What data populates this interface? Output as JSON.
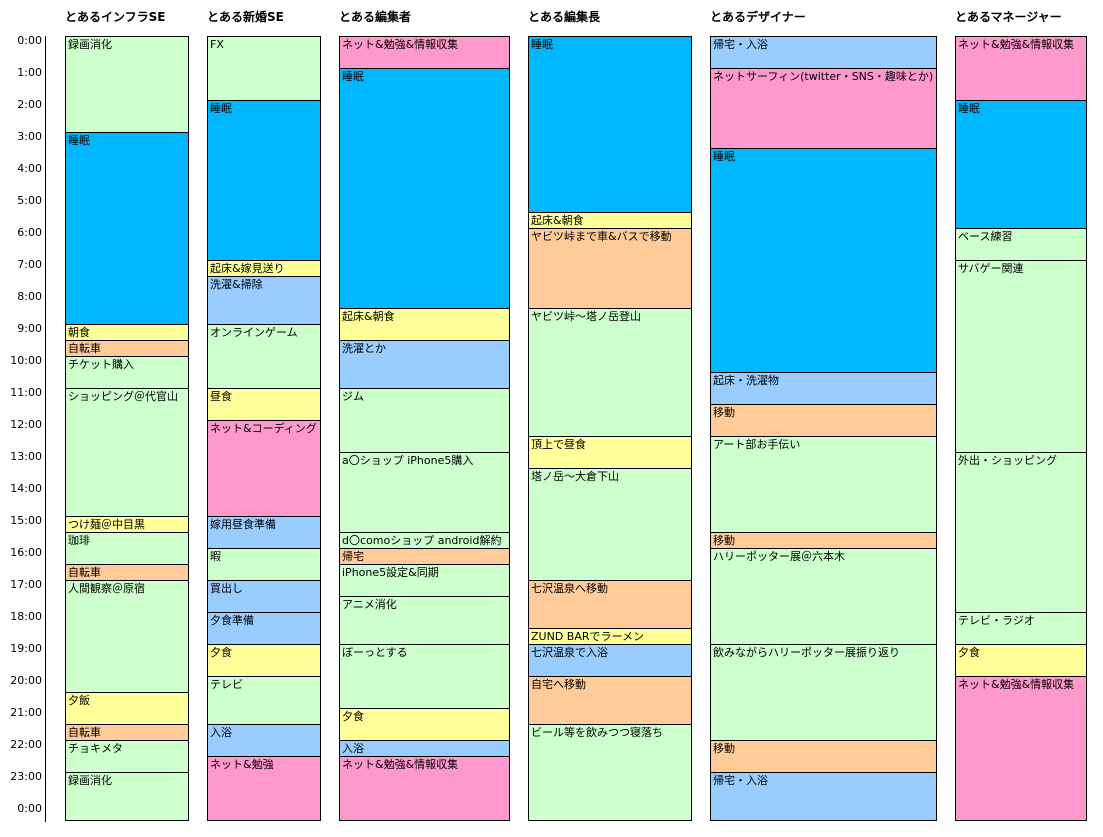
{
  "hours": [
    "0:00",
    "1:00",
    "2:00",
    "3:00",
    "4:00",
    "5:00",
    "6:00",
    "7:00",
    "8:00",
    "9:00",
    "10:00",
    "11:00",
    "12:00",
    "13:00",
    "14:00",
    "15:00",
    "16:00",
    "17:00",
    "18:00",
    "19:00",
    "20:00",
    "21:00",
    "22:00",
    "23:00",
    "0:00"
  ],
  "palette": {
    "green": "#ccffcc",
    "blue": "#00b8ff",
    "yellow": "#ffff99",
    "orange": "#ffcc99",
    "lightblue": "#99ccff",
    "pink": "#ff99cc"
  },
  "columns": [
    {
      "title": "とあるインフラSE",
      "blocks": [
        {
          "label": "録画消化",
          "start": 0,
          "end": 3,
          "color": "green"
        },
        {
          "label": "睡眠",
          "start": 3,
          "end": 9,
          "color": "blue"
        },
        {
          "label": "朝食",
          "start": 9,
          "end": 9.5,
          "color": "yellow"
        },
        {
          "label": "自転車",
          "start": 9.5,
          "end": 10,
          "color": "orange"
        },
        {
          "label": "チケット購入",
          "start": 10,
          "end": 11,
          "color": "green"
        },
        {
          "label": "ショッピング＠代官山",
          "start": 11,
          "end": 15,
          "color": "green"
        },
        {
          "label": "つけ麺＠中目黒",
          "start": 15,
          "end": 15.5,
          "color": "yellow"
        },
        {
          "label": "珈琲",
          "start": 15.5,
          "end": 16.5,
          "color": "green"
        },
        {
          "label": "自転車",
          "start": 16.5,
          "end": 17,
          "color": "orange"
        },
        {
          "label": "人間観察＠原宿",
          "start": 17,
          "end": 20.5,
          "color": "green"
        },
        {
          "label": "夕飯",
          "start": 20.5,
          "end": 21.5,
          "color": "yellow"
        },
        {
          "label": "自転車",
          "start": 21.5,
          "end": 22,
          "color": "orange"
        },
        {
          "label": "チョキメタ",
          "start": 22,
          "end": 23,
          "color": "green"
        },
        {
          "label": "録画消化",
          "start": 23,
          "end": 24.5,
          "color": "green"
        }
      ]
    },
    {
      "title": "とある新婚SE",
      "blocks": [
        {
          "label": "FX",
          "start": 0,
          "end": 2,
          "color": "green"
        },
        {
          "label": "睡眠",
          "start": 2,
          "end": 7,
          "color": "blue"
        },
        {
          "label": "起床&嫁見送り",
          "start": 7,
          "end": 7.5,
          "color": "yellow"
        },
        {
          "label": "洗濯&掃除",
          "start": 7.5,
          "end": 9,
          "color": "lightblue"
        },
        {
          "label": "オンラインゲーム",
          "start": 9,
          "end": 11,
          "color": "green"
        },
        {
          "label": "昼食",
          "start": 11,
          "end": 12,
          "color": "yellow"
        },
        {
          "label": "ネット&コーディング",
          "start": 12,
          "end": 15,
          "color": "pink"
        },
        {
          "label": "嫁用昼食準備",
          "start": 15,
          "end": 16,
          "color": "lightblue"
        },
        {
          "label": "暇",
          "start": 16,
          "end": 17,
          "color": "green"
        },
        {
          "label": "買出し",
          "start": 17,
          "end": 18,
          "color": "lightblue"
        },
        {
          "label": "夕食準備",
          "start": 18,
          "end": 19,
          "color": "lightblue"
        },
        {
          "label": "夕食",
          "start": 19,
          "end": 20,
          "color": "yellow"
        },
        {
          "label": "テレビ",
          "start": 20,
          "end": 21.5,
          "color": "green"
        },
        {
          "label": "入浴",
          "start": 21.5,
          "end": 22.5,
          "color": "lightblue"
        },
        {
          "label": "ネット&勉強",
          "start": 22.5,
          "end": 24.5,
          "color": "pink"
        }
      ]
    },
    {
      "title": "とある編集者",
      "blocks": [
        {
          "label": "ネット&勉強&情報収集",
          "start": 0,
          "end": 1,
          "color": "pink"
        },
        {
          "label": "睡眠",
          "start": 1,
          "end": 8.5,
          "color": "blue"
        },
        {
          "label": "起床&朝食",
          "start": 8.5,
          "end": 9.5,
          "color": "yellow"
        },
        {
          "label": "洗濯とか",
          "start": 9.5,
          "end": 11,
          "color": "lightblue"
        },
        {
          "label": "ジム",
          "start": 11,
          "end": 13,
          "color": "green"
        },
        {
          "label": "a〇ショップ iPhone5購入",
          "start": 13,
          "end": 15.5,
          "color": "green"
        },
        {
          "label": "d〇comoショップ android解約",
          "start": 15.5,
          "end": 16,
          "color": "green"
        },
        {
          "label": "帰宅",
          "start": 16,
          "end": 16.5,
          "color": "orange"
        },
        {
          "label": "iPhone5設定&同期",
          "start": 16.5,
          "end": 17.5,
          "color": "green"
        },
        {
          "label": "アニメ消化",
          "start": 17.5,
          "end": 19,
          "color": "green"
        },
        {
          "label": "ぼーっとする",
          "start": 19,
          "end": 21,
          "color": "green"
        },
        {
          "label": "夕食",
          "start": 21,
          "end": 22,
          "color": "yellow"
        },
        {
          "label": "入浴",
          "start": 22,
          "end": 22.5,
          "color": "lightblue"
        },
        {
          "label": "ネット&勉強&情報収集",
          "start": 22.5,
          "end": 24.5,
          "color": "pink"
        }
      ]
    },
    {
      "title": "とある編集長",
      "blocks": [
        {
          "label": "睡眠",
          "start": 0,
          "end": 5.5,
          "color": "blue"
        },
        {
          "label": "起床&朝食",
          "start": 5.5,
          "end": 6,
          "color": "yellow"
        },
        {
          "label": "ヤビツ峠まで車&バスで移動",
          "start": 6,
          "end": 8.5,
          "color": "orange"
        },
        {
          "label": "ヤビツ峠～塔ノ岳登山",
          "start": 8.5,
          "end": 12.5,
          "color": "green"
        },
        {
          "label": "頂上で昼食",
          "start": 12.5,
          "end": 13.5,
          "color": "yellow"
        },
        {
          "label": "塔ノ岳～大倉下山",
          "start": 13.5,
          "end": 17,
          "color": "green"
        },
        {
          "label": "七沢温泉へ移動",
          "start": 17,
          "end": 18.5,
          "color": "orange"
        },
        {
          "label": "ZUND BARでラーメン",
          "start": 18.5,
          "end": 19,
          "color": "yellow"
        },
        {
          "label": "七沢温泉で入浴",
          "start": 19,
          "end": 20,
          "color": "lightblue"
        },
        {
          "label": "自宅へ移動",
          "start": 20,
          "end": 21.5,
          "color": "orange"
        },
        {
          "label": "ビール等を飲みつつ寝落ち",
          "start": 21.5,
          "end": 24.5,
          "color": "green"
        }
      ]
    },
    {
      "title": "とあるデザイナー",
      "blocks": [
        {
          "label": "帰宅・入浴",
          "start": 0,
          "end": 1,
          "color": "lightblue"
        },
        {
          "label": "ネットサーフィン(twitter・SNS・趣味とか)",
          "start": 1,
          "end": 3.5,
          "color": "pink"
        },
        {
          "label": "睡眠",
          "start": 3.5,
          "end": 10.5,
          "color": "blue"
        },
        {
          "label": "起床・洗濯物",
          "start": 10.5,
          "end": 11.5,
          "color": "lightblue"
        },
        {
          "label": "移動",
          "start": 11.5,
          "end": 12.5,
          "color": "orange"
        },
        {
          "label": "アート部お手伝い",
          "start": 12.5,
          "end": 15.5,
          "color": "green"
        },
        {
          "label": "移動",
          "start": 15.5,
          "end": 16,
          "color": "orange"
        },
        {
          "label": "ハリーポッター展＠六本木",
          "start": 16,
          "end": 19,
          "color": "green"
        },
        {
          "label": "飲みながらハリーポッター展振り返り",
          "start": 19,
          "end": 22,
          "color": "green"
        },
        {
          "label": "移動",
          "start": 22,
          "end": 23,
          "color": "orange"
        },
        {
          "label": "帰宅・入浴",
          "start": 23,
          "end": 24.5,
          "color": "lightblue"
        }
      ]
    },
    {
      "title": "とあるマネージャー",
      "blocks": [
        {
          "label": "ネット&勉強&情報収集",
          "start": 0,
          "end": 2,
          "color": "pink"
        },
        {
          "label": "睡眠",
          "start": 2,
          "end": 6,
          "color": "blue"
        },
        {
          "label": "ベース練習",
          "start": 6,
          "end": 7,
          "color": "green"
        },
        {
          "label": "サバゲー関連",
          "start": 7,
          "end": 13,
          "color": "green"
        },
        {
          "label": "外出・ショッピング",
          "start": 13,
          "end": 18,
          "color": "green"
        },
        {
          "label": "テレビ・ラジオ",
          "start": 18,
          "end": 19,
          "color": "green"
        },
        {
          "label": "夕食",
          "start": 19,
          "end": 20,
          "color": "yellow"
        },
        {
          "label": "ネット&勉強&情報収集",
          "start": 20,
          "end": 24.5,
          "color": "pink"
        }
      ]
    }
  ]
}
